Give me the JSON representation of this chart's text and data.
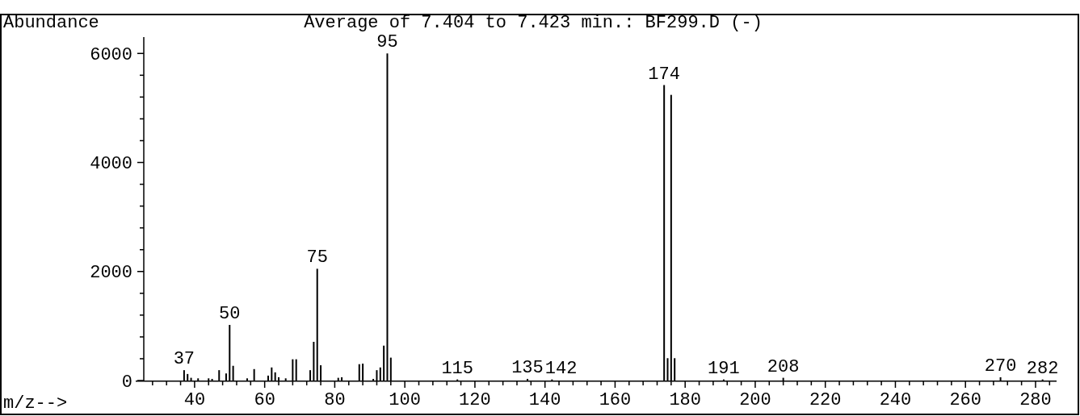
{
  "chart_data": {
    "type": "bar",
    "title": "Average of 7.404 to 7.423 min.: BF299.D (-)",
    "xlabel": "m/z-->",
    "ylabel": "Abundance",
    "color": "#000000",
    "x": [
      37,
      38,
      39,
      41,
      44,
      45,
      47,
      49,
      50,
      51,
      55,
      57,
      61,
      62,
      63,
      64,
      66,
      68,
      69,
      73,
      74,
      75,
      76,
      81,
      82,
      87,
      88,
      91,
      92,
      93,
      94,
      95,
      96,
      115,
      135,
      142,
      174,
      175,
      176,
      177,
      191,
      208,
      270,
      282
    ],
    "values": [
      190,
      120,
      50,
      40,
      40,
      30,
      190,
      130,
      1020,
      270,
      40,
      210,
      90,
      240,
      150,
      60,
      40,
      390,
      390,
      190,
      710,
      2050,
      280,
      50,
      60,
      300,
      310,
      30,
      190,
      240,
      640,
      6000,
      420,
      20,
      30,
      20,
      5420,
      410,
      5240,
      410,
      20,
      50,
      60,
      20
    ],
    "xlim": [
      25.5,
      286
    ],
    "xticks": [
      {
        "value": 28,
        "label": null
      },
      {
        "value": 32,
        "label": null
      },
      {
        "value": 36,
        "label": null
      },
      40,
      {
        "value": 44,
        "label": null
      },
      {
        "value": 48,
        "label": null
      },
      {
        "value": 52,
        "label": null
      },
      {
        "value": 56,
        "label": null
      },
      60,
      {
        "value": 64,
        "label": null
      },
      {
        "value": 68,
        "label": null
      },
      {
        "value": 72,
        "label": null
      },
      {
        "value": 76,
        "label": null
      },
      80,
      {
        "value": 84,
        "label": null
      },
      {
        "value": 88,
        "label": null
      },
      {
        "value": 92,
        "label": null
      },
      {
        "value": 96,
        "label": null
      },
      100,
      {
        "value": 104,
        "label": null
      },
      {
        "value": 108,
        "label": null
      },
      {
        "value": 112,
        "label": null
      },
      {
        "value": 116,
        "label": null
      },
      120,
      {
        "value": 124,
        "label": null
      },
      {
        "value": 128,
        "label": null
      },
      {
        "value": 132,
        "label": null
      },
      {
        "value": 136,
        "label": null
      },
      140,
      {
        "value": 144,
        "label": null
      },
      {
        "value": 148,
        "label": null
      },
      {
        "value": 152,
        "label": null
      },
      {
        "value": 156,
        "label": null
      },
      160,
      {
        "value": 164,
        "label": null
      },
      {
        "value": 168,
        "label": null
      },
      {
        "value": 172,
        "label": null
      },
      {
        "value": 176,
        "label": null
      },
      180,
      {
        "value": 184,
        "label": null
      },
      {
        "value": 188,
        "label": null
      },
      {
        "value": 192,
        "label": null
      },
      {
        "value": 196,
        "label": null
      },
      200,
      {
        "value": 204,
        "label": null
      },
      {
        "value": 208,
        "label": null
      },
      {
        "value": 212,
        "label": null
      },
      {
        "value": 216,
        "label": null
      },
      220,
      {
        "value": 224,
        "label": null
      },
      {
        "value": 228,
        "label": null
      },
      {
        "value": 232,
        "label": null
      },
      {
        "value": 236,
        "label": null
      },
      240,
      {
        "value": 244,
        "label": null
      },
      {
        "value": 248,
        "label": null
      },
      {
        "value": 252,
        "label": null
      },
      {
        "value": 256,
        "label": null
      },
      260,
      {
        "value": 264,
        "label": null
      },
      {
        "value": 268,
        "label": null
      },
      {
        "value": 272,
        "label": null
      },
      {
        "value": 276,
        "label": null
      },
      280,
      {
        "value": 284,
        "label": null
      }
    ],
    "ylim": [
      0,
      6300
    ],
    "yticks": [
      0,
      {
        "value": 400,
        "label": null
      },
      {
        "value": 800,
        "label": null
      },
      {
        "value": 1200,
        "label": null
      },
      {
        "value": 1600,
        "label": null
      },
      2000,
      {
        "value": 2400,
        "label": null
      },
      {
        "value": 2800,
        "label": null
      },
      {
        "value": 3200,
        "label": null
      },
      {
        "value": 3600,
        "label": null
      },
      4000,
      {
        "value": 4400,
        "label": null
      },
      {
        "value": 4800,
        "label": null
      },
      {
        "value": 5200,
        "label": null
      },
      {
        "value": 5600,
        "label": null
      },
      6000
    ],
    "annotations": [
      {
        "text": "37",
        "x": 37,
        "y": 190
      },
      {
        "text": "50",
        "x": 50,
        "y": 1020
      },
      {
        "text": "75",
        "x": 75,
        "y": 2050
      },
      {
        "text": "95",
        "x": 95,
        "y": 6000
      },
      {
        "text": "115",
        "x": 115,
        "y": 20
      },
      {
        "text": "135",
        "x": 135,
        "y": 30
      },
      {
        "text": "142",
        "x": 142,
        "y": 20
      },
      {
        "text": "174",
        "x": 174,
        "y": 5420
      },
      {
        "text": "191",
        "x": 191,
        "y": 20
      },
      {
        "text": "208",
        "x": 208,
        "y": 50
      },
      {
        "text": "270",
        "x": 270,
        "y": 60
      },
      {
        "text": "282",
        "x": 282,
        "y": 20
      }
    ]
  }
}
